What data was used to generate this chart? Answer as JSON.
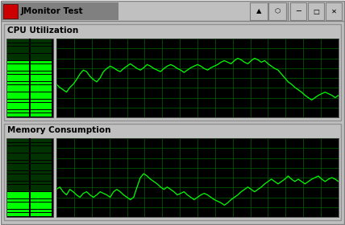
{
  "title": "JMonitor Test",
  "bg_outer": "#c0c0c0",
  "bg_window": "#c0c0c0",
  "graph_bg": "#000000",
  "grid_color": "#005500",
  "line_color": "#00ff00",
  "led_on": "#00ff00",
  "led_off": "#003300",
  "titlebar_bg": "#c0c0c0",
  "titlebar_tab_bg": "#909090",
  "section1_label": "CPU Utilization",
  "section2_label": "Memory Consumption",
  "cpu_data": [
    42,
    38,
    35,
    32,
    38,
    42,
    48,
    55,
    60,
    58,
    52,
    48,
    45,
    50,
    58,
    62,
    65,
    63,
    60,
    58,
    62,
    65,
    68,
    65,
    62,
    60,
    63,
    67,
    65,
    62,
    60,
    58,
    62,
    65,
    67,
    65,
    62,
    60,
    57,
    60,
    63,
    65,
    67,
    65,
    62,
    60,
    63,
    65,
    67,
    70,
    72,
    70,
    68,
    72,
    75,
    73,
    70,
    68,
    72,
    75,
    73,
    70,
    72,
    68,
    65,
    62,
    60,
    55,
    50,
    45,
    42,
    38,
    35,
    32,
    28,
    25,
    22,
    25,
    28,
    30,
    32,
    30,
    28,
    25,
    28
  ],
  "mem_data": [
    35,
    38,
    32,
    28,
    35,
    32,
    28,
    25,
    30,
    32,
    28,
    25,
    28,
    32,
    30,
    28,
    25,
    32,
    35,
    32,
    28,
    25,
    22,
    25,
    38,
    50,
    55,
    52,
    48,
    45,
    42,
    38,
    35,
    38,
    35,
    32,
    28,
    30,
    32,
    28,
    25,
    22,
    25,
    28,
    30,
    28,
    25,
    22,
    20,
    18,
    15,
    18,
    22,
    25,
    28,
    32,
    35,
    38,
    35,
    32,
    35,
    38,
    42,
    45,
    48,
    45,
    42,
    45,
    48,
    52,
    48,
    45,
    48,
    45,
    42,
    45,
    48,
    50,
    52,
    48,
    45,
    48,
    50,
    48,
    45
  ],
  "cpu_led_level": 0.72,
  "mem_led_level": 0.3,
  "num_led_rows": 22,
  "num_led_cols": 2,
  "grid_cols": 16,
  "grid_rows": 8,
  "font_size_section": 9
}
